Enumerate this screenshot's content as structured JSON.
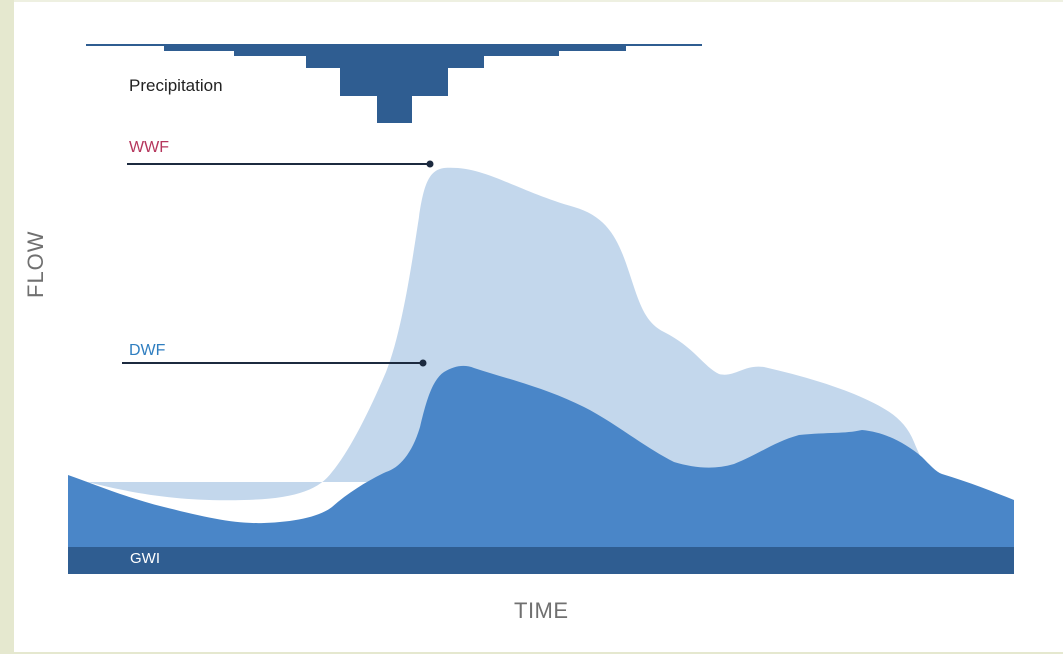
{
  "labels": {
    "precipitation": "Precipitation",
    "wwf": "WWF",
    "dwf": "DWF",
    "gwi": "GWI",
    "x_axis": "TIME",
    "y_axis": "FLOW"
  },
  "colors": {
    "background": "#e5e8cf",
    "canvas": "#ffffff",
    "precipitation": "#2f5d91",
    "wwf_area": "#c3d7ec",
    "dwf_area": "#4a86c8",
    "gwi_band": "#2f5d91",
    "leader_line": "#1c2a3f",
    "wwf_text": "#b5365c",
    "dwf_text": "#2f7ec0",
    "axis_text": "#707070"
  }
}
